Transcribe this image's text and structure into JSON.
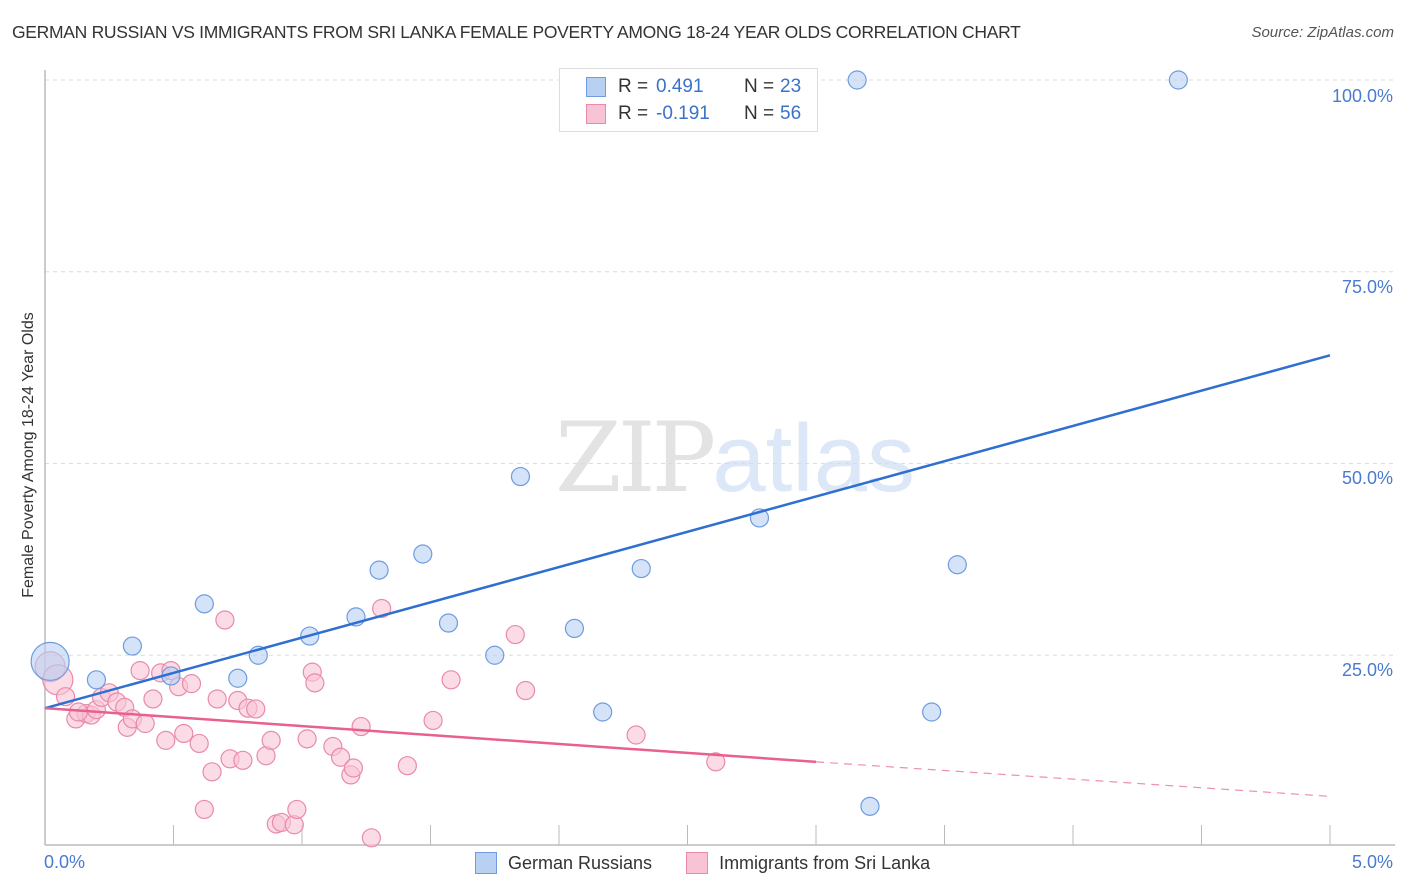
{
  "header": {
    "title": "GERMAN RUSSIAN VS IMMIGRANTS FROM SRI LANKA FEMALE POVERTY AMONG 18-24 YEAR OLDS CORRELATION CHART",
    "source": "Source: ZipAtlas.com"
  },
  "watermark": {
    "zip": "ZIP",
    "atlas": "atlas"
  },
  "legend": {
    "series": [
      {
        "r_label": "R =",
        "r_value": "0.491",
        "n_label": "N =",
        "n_value": "23"
      },
      {
        "r_label": "R =",
        "r_value": "-0.191",
        "n_label": "N =",
        "n_value": "56"
      }
    ]
  },
  "axes": {
    "ylabel": "Female Poverty Among 18-24 Year Olds",
    "yticks": [
      "100.0%",
      "75.0%",
      "50.0%",
      "25.0%"
    ],
    "xticks": [
      "0.0%",
      "5.0%"
    ]
  },
  "bottom_legend": [
    "German Russians",
    "Immigrants from Sri Lanka"
  ],
  "colors": {
    "blue_fill": "#b8d1f3",
    "blue_stroke": "#6f9be0",
    "blue_line": "#2f6fd0",
    "pink_fill": "#f8c4d5",
    "pink_stroke": "#e98aaa",
    "pink_line": "#e8608f",
    "tick_text": "#4a7bd0"
  },
  "chart_data": {
    "type": "scatter",
    "title": "GERMAN RUSSIAN VS IMMIGRANTS FROM SRI LANKA FEMALE POVERTY AMONG 18-24 YEAR OLDS CORRELATION CHART",
    "xlabel": "",
    "ylabel": "Female Poverty Among 18-24 Year Olds",
    "xlim": [
      0,
      5
    ],
    "ylim": [
      0,
      100
    ],
    "x_unit": "%",
    "y_unit": "%",
    "grid": {
      "horizontal": true,
      "vertical": false
    },
    "legend_position": "top-center and bottom",
    "series": [
      {
        "name": "German Russians",
        "R": 0.491,
        "N": 23,
        "trend": {
          "x": [
            0,
            5
          ],
          "y": [
            18.1,
            64.1
          ],
          "style": "solid"
        },
        "points": [
          {
            "x": 0.02,
            "y": 24.2,
            "size": "large"
          },
          {
            "x": 0.2,
            "y": 21.8
          },
          {
            "x": 0.34,
            "y": 26.2
          },
          {
            "x": 0.49,
            "y": 22.3
          },
          {
            "x": 0.62,
            "y": 31.7
          },
          {
            "x": 0.75,
            "y": 22.0
          },
          {
            "x": 0.83,
            "y": 25.0
          },
          {
            "x": 1.03,
            "y": 27.5
          },
          {
            "x": 1.21,
            "y": 30.0
          },
          {
            "x": 1.3,
            "y": 36.1
          },
          {
            "x": 1.47,
            "y": 38.2
          },
          {
            "x": 1.57,
            "y": 29.2
          },
          {
            "x": 1.75,
            "y": 25.0
          },
          {
            "x": 1.85,
            "y": 48.3
          },
          {
            "x": 2.06,
            "y": 28.5
          },
          {
            "x": 2.17,
            "y": 17.6
          },
          {
            "x": 2.32,
            "y": 36.3
          },
          {
            "x": 2.78,
            "y": 42.9
          },
          {
            "x": 3.16,
            "y": 100.0
          },
          {
            "x": 3.21,
            "y": 5.3
          },
          {
            "x": 3.45,
            "y": 17.6
          },
          {
            "x": 3.55,
            "y": 36.8
          },
          {
            "x": 4.41,
            "y": 100.0
          }
        ]
      },
      {
        "name": "Immigrants from Sri Lanka",
        "R": -0.191,
        "N": 56,
        "trend": {
          "x": [
            0,
            3.0,
            5
          ],
          "y": [
            18.1,
            11.1,
            6.6
          ],
          "style": "solid to x=3.0, dashed beyond"
        },
        "points": [
          {
            "x": 0.02,
            "y": 23.5,
            "size": "large"
          },
          {
            "x": 0.05,
            "y": 21.8,
            "size": "large"
          },
          {
            "x": 0.08,
            "y": 19.6
          },
          {
            "x": 0.12,
            "y": 16.7
          },
          {
            "x": 0.16,
            "y": 17.4
          },
          {
            "x": 0.18,
            "y": 17.2
          },
          {
            "x": 0.2,
            "y": 17.9
          },
          {
            "x": 0.22,
            "y": 19.5
          },
          {
            "x": 0.25,
            "y": 20.1
          },
          {
            "x": 0.28,
            "y": 18.9
          },
          {
            "x": 0.31,
            "y": 18.2
          },
          {
            "x": 0.32,
            "y": 15.6
          },
          {
            "x": 0.34,
            "y": 16.7
          },
          {
            "x": 0.37,
            "y": 23.0
          },
          {
            "x": 0.39,
            "y": 16.1
          },
          {
            "x": 0.42,
            "y": 19.3
          },
          {
            "x": 0.45,
            "y": 22.7
          },
          {
            "x": 0.47,
            "y": 13.9
          },
          {
            "x": 0.49,
            "y": 23.0
          },
          {
            "x": 0.52,
            "y": 20.9
          },
          {
            "x": 0.54,
            "y": 14.8
          },
          {
            "x": 0.57,
            "y": 21.3
          },
          {
            "x": 0.6,
            "y": 13.5
          },
          {
            "x": 0.62,
            "y": 4.9
          },
          {
            "x": 0.65,
            "y": 9.8
          },
          {
            "x": 0.67,
            "y": 19.3
          },
          {
            "x": 0.7,
            "y": 29.6
          },
          {
            "x": 0.72,
            "y": 11.5
          },
          {
            "x": 0.75,
            "y": 19.1
          },
          {
            "x": 0.77,
            "y": 11.3
          },
          {
            "x": 0.79,
            "y": 18.1
          },
          {
            "x": 0.82,
            "y": 18.0
          },
          {
            "x": 0.86,
            "y": 11.9
          },
          {
            "x": 0.88,
            "y": 13.9
          },
          {
            "x": 0.9,
            "y": 3.0
          },
          {
            "x": 0.92,
            "y": 3.2
          },
          {
            "x": 0.97,
            "y": 2.9
          },
          {
            "x": 0.98,
            "y": 4.9
          },
          {
            "x": 1.02,
            "y": 14.1
          },
          {
            "x": 1.04,
            "y": 22.8
          },
          {
            "x": 1.05,
            "y": 21.4
          },
          {
            "x": 1.12,
            "y": 13.1
          },
          {
            "x": 1.15,
            "y": 11.7
          },
          {
            "x": 1.19,
            "y": 9.4
          },
          {
            "x": 1.2,
            "y": 10.3
          },
          {
            "x": 1.23,
            "y": 15.7
          },
          {
            "x": 1.27,
            "y": 1.2
          },
          {
            "x": 1.31,
            "y": 31.1
          },
          {
            "x": 1.41,
            "y": 10.6
          },
          {
            "x": 1.51,
            "y": 16.5
          },
          {
            "x": 1.58,
            "y": 21.8
          },
          {
            "x": 1.83,
            "y": 27.7
          },
          {
            "x": 1.87,
            "y": 20.4
          },
          {
            "x": 2.3,
            "y": 14.6
          },
          {
            "x": 2.61,
            "y": 11.1
          },
          {
            "x": 0.13,
            "y": 17.6
          }
        ]
      }
    ]
  }
}
